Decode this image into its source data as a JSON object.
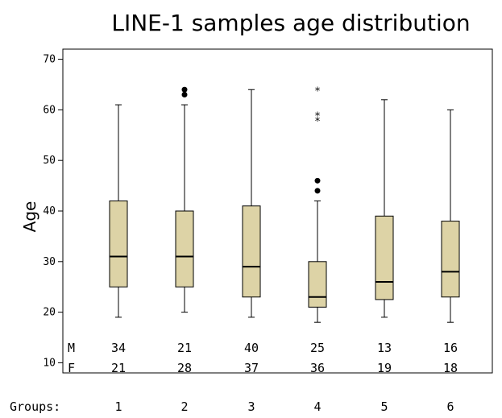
{
  "chart_data": {
    "type": "boxplot",
    "title": "LINE-1 samples age distribution",
    "ylabel": "Age",
    "ylim": [
      8,
      72
    ],
    "yticks": [
      10,
      20,
      30,
      40,
      50,
      60,
      70
    ],
    "x_prefix": "Groups:",
    "categories": [
      "1",
      "2",
      "3",
      "4",
      "5",
      "6"
    ],
    "box_color": "#ddd3a6",
    "boxes": [
      {
        "group": "1",
        "min": 19,
        "q1": 25,
        "median": 31,
        "q3": 42,
        "max": 61,
        "outliers": [],
        "extremes": []
      },
      {
        "group": "2",
        "min": 20,
        "q1": 25,
        "median": 31,
        "q3": 40,
        "max": 61,
        "outliers": [
          63,
          64
        ],
        "extremes": []
      },
      {
        "group": "3",
        "min": 19,
        "q1": 23,
        "median": 29,
        "q3": 41,
        "max": 64,
        "outliers": [],
        "extremes": []
      },
      {
        "group": "4",
        "min": 18,
        "q1": 21,
        "median": 23,
        "q3": 30,
        "max": 42,
        "outliers": [
          44,
          46
        ],
        "extremes": [
          58,
          59,
          64
        ]
      },
      {
        "group": "5",
        "min": 19,
        "q1": 22.5,
        "median": 26,
        "q3": 39,
        "max": 62,
        "outliers": [],
        "extremes": []
      },
      {
        "group": "6",
        "min": 18,
        "q1": 23,
        "median": 28,
        "q3": 38,
        "max": 60,
        "outliers": [],
        "extremes": []
      }
    ],
    "counts": {
      "M": {
        "label": "M",
        "values": [
          "34",
          "21",
          "40",
          "25",
          "13",
          "16"
        ]
      },
      "F": {
        "label": "F",
        "values": [
          "21",
          "28",
          "37",
          "36",
          "19",
          "18"
        ]
      }
    }
  }
}
